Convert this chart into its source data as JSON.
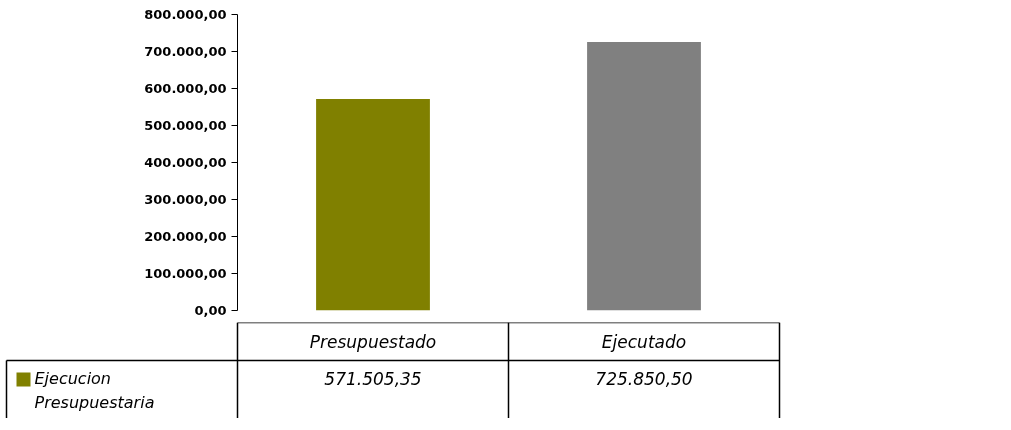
{
  "chart_data": {
    "type": "bar",
    "categories": [
      "Presupuestado",
      "Ejecutado"
    ],
    "series": [
      {
        "name": "Ejecucion Presupuestaria",
        "color": "#808000",
        "colors": [
          "#808000",
          "#808080"
        ],
        "values": [
          571505.35,
          725850.5
        ],
        "value_labels": [
          "571.505,35",
          "725.850,50"
        ]
      }
    ],
    "ylim": [
      0,
      800000
    ],
    "yticks": [
      {
        "value": 0,
        "label": "0,00"
      },
      {
        "value": 100000,
        "label": "100.000,00"
      },
      {
        "value": 200000,
        "label": "200.000,00"
      },
      {
        "value": 300000,
        "label": "300.000,00"
      },
      {
        "value": 400000,
        "label": "400.000,00"
      },
      {
        "value": 500000,
        "label": "500.000,00"
      },
      {
        "value": 600000,
        "label": "600.000,00"
      },
      {
        "value": 700000,
        "label": "700.000,00"
      },
      {
        "value": 800000,
        "label": "800.000,00"
      }
    ],
    "grid": false,
    "legend": "bottom left"
  }
}
